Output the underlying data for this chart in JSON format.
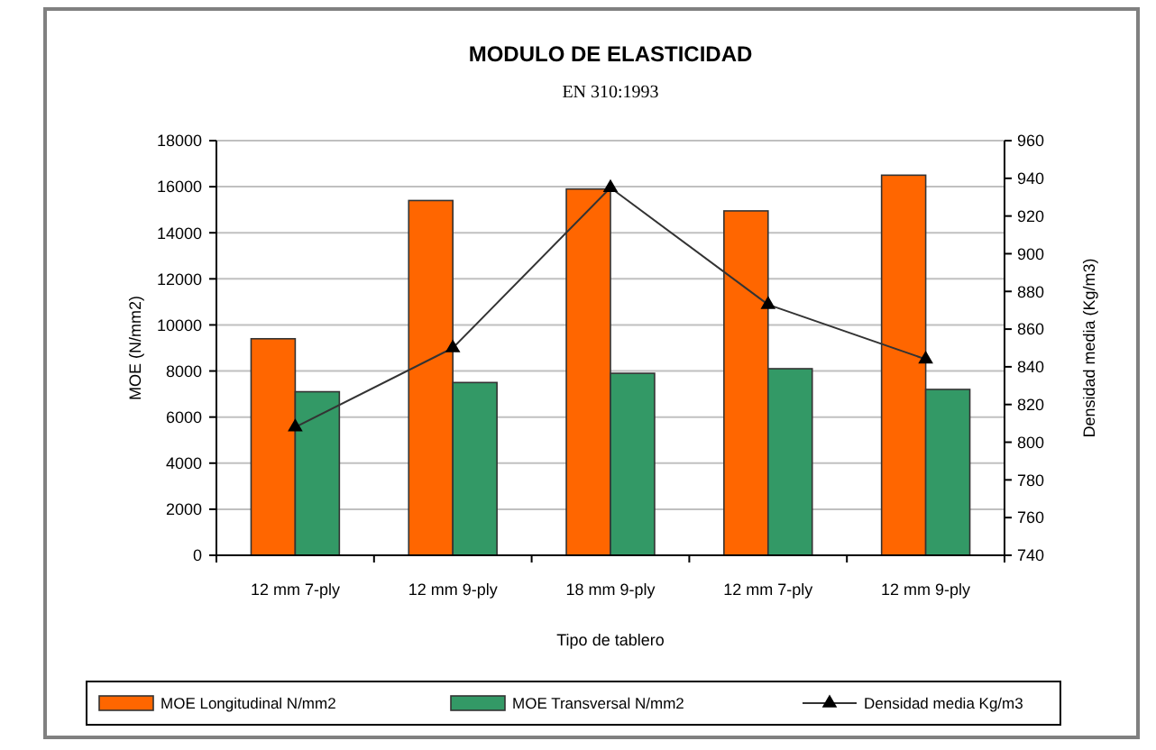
{
  "chart_data": {
    "type": "bar",
    "title": "MODULO DE ELASTICIDAD",
    "subtitle": "EN 310:1993",
    "xlabel": "Tipo de tablero",
    "ylabel": "MOE (N/mm2)",
    "y2label": "Densidad media (Kg/m3)",
    "categories": [
      "12 mm 7-ply",
      "12 mm 9-ply",
      "18 mm 9-ply",
      "12 mm 7-ply",
      "12 mm 9-ply"
    ],
    "series": [
      {
        "name": "MOE Longitudinal N/mm2",
        "color": "#ff6600",
        "values": [
          9400,
          15400,
          15900,
          14950,
          16500
        ]
      },
      {
        "name": "MOE Transversal N/mm2",
        "color": "#339966",
        "values": [
          7100,
          7500,
          7900,
          8100,
          7200
        ]
      },
      {
        "name": "Densidad media Kg/m3",
        "type": "line",
        "axis": "y2",
        "color": "#333333",
        "marker": "triangle",
        "values": [
          808,
          850,
          935,
          873,
          844
        ]
      }
    ],
    "ylim": [
      0,
      18000
    ],
    "yticks": [
      0,
      2000,
      4000,
      6000,
      8000,
      10000,
      12000,
      14000,
      16000,
      18000
    ],
    "y2lim": [
      740,
      960
    ],
    "y2ticks": [
      740,
      760,
      780,
      800,
      820,
      840,
      860,
      880,
      900,
      920,
      940,
      960
    ],
    "grid": "y",
    "legend": "bottom"
  }
}
